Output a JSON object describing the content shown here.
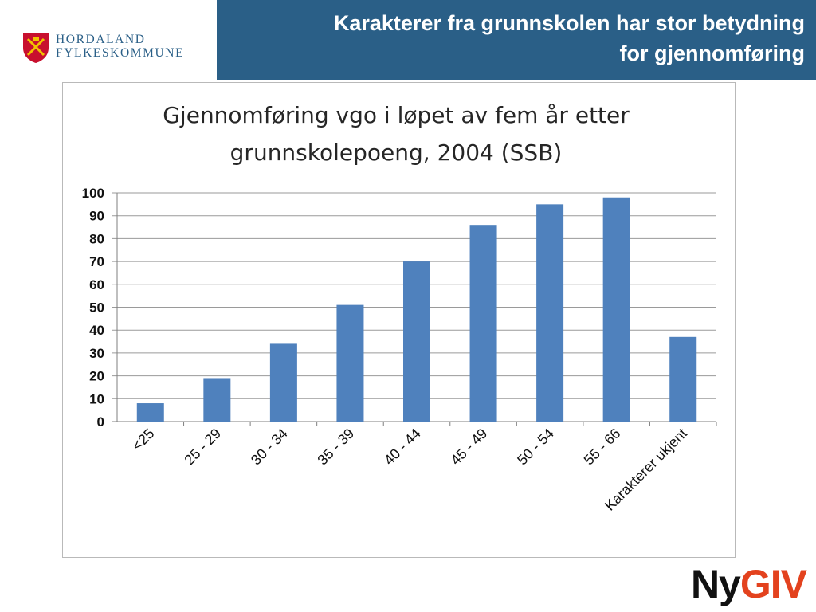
{
  "header": {
    "org_line1": "HORDALAND",
    "org_line2": "FYLKESKOMMUNE",
    "title_line1": "Karakterer fra grunnskolen har stor betydning",
    "title_line2": "for gjennomføring",
    "colors": {
      "band": "#2a5f87",
      "title_text": "#ffffff"
    }
  },
  "chart_data": {
    "type": "bar",
    "title_line1": "Gjennomføring vgo i løpet av fem år etter",
    "title_line2": "grunnskolepoeng, 2004 (SSB)",
    "categories": [
      "<25",
      "25 - 29",
      "30 - 34",
      "35 - 39",
      "40 - 44",
      "45 - 49",
      "50 - 54",
      "55 - 66",
      "Karakterer ukjent"
    ],
    "values": [
      8,
      19,
      34,
      51,
      70,
      86,
      95,
      98,
      37
    ],
    "yticks": [
      0,
      10,
      20,
      30,
      40,
      50,
      60,
      70,
      80,
      90,
      100
    ],
    "ylim": [
      0,
      100
    ],
    "grid": true,
    "legend": "none",
    "bar_color": "#4f81bd"
  },
  "footer": {
    "logo_ny": "Ny",
    "logo_giv": "GIV",
    "colors": {
      "ny": "#111111",
      "giv": "#e3421e"
    }
  }
}
